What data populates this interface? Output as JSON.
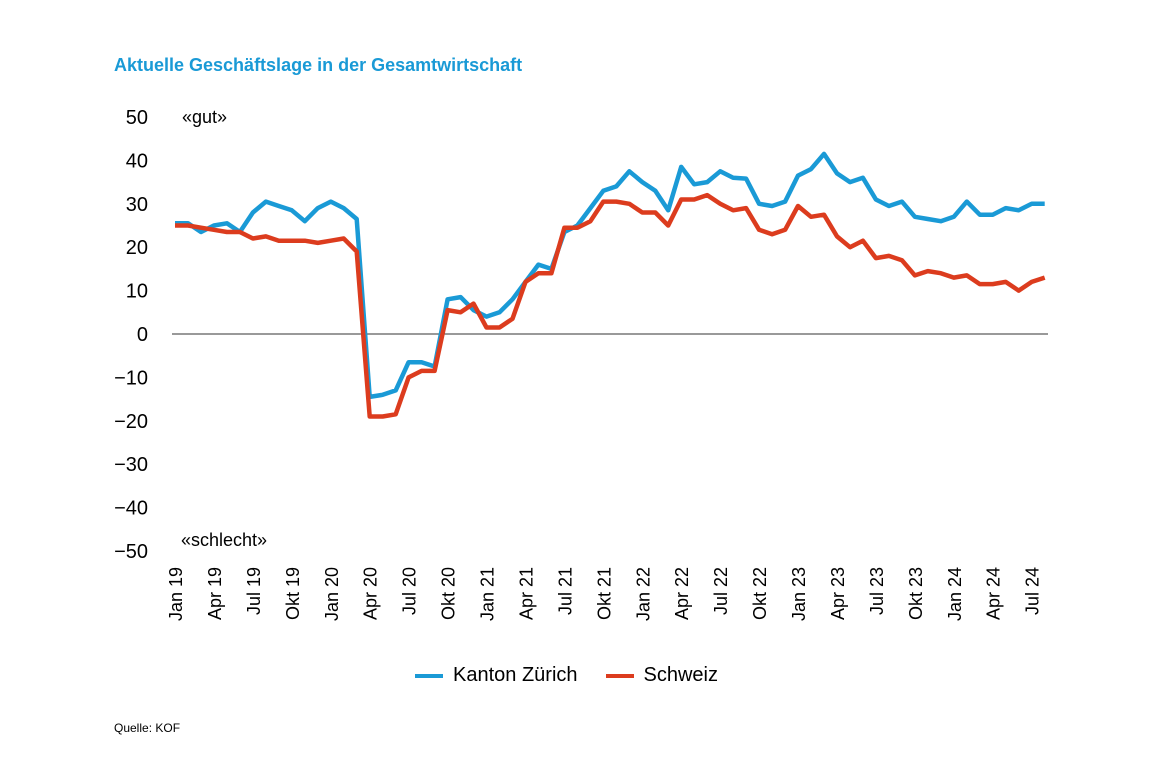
{
  "chart_data": {
    "type": "line",
    "title": "Aktuelle Geschäftslage in der Gesamtwirtschaft",
    "ylim": [
      -50,
      50
    ],
    "yticks": [
      "50",
      "40",
      "30",
      "20",
      "10",
      "0",
      "−10",
      "−20",
      "−30",
      "−40",
      "−50"
    ],
    "annotation_top": "«gut»",
    "annotation_bottom": "«schlecht»",
    "x_start": "Jan 19",
    "x_end": "Aug 24",
    "xtick_labels": [
      "Jan 19",
      "Apr 19",
      "Jul 19",
      "Okt 19",
      "Jan 20",
      "Apr 20",
      "Jul 20",
      "Okt 20",
      "Jan 21",
      "Apr 21",
      "Jul 21",
      "Okt 21",
      "Jan 22",
      "Apr 22",
      "Jul 22",
      "Okt 22",
      "Jan 23",
      "Apr 23",
      "Jul 23",
      "Okt 23",
      "Jan 24",
      "Apr 24",
      "Jul 24"
    ],
    "grid": false,
    "legend_position": "bottom",
    "series": [
      {
        "name": "Kanton Zürich",
        "color": "#1a9ad6",
        "values": [
          25.5,
          25.5,
          23.5,
          25,
          25.5,
          23.5,
          28,
          30.5,
          29.5,
          28.5,
          26,
          29,
          30.5,
          29,
          26.5,
          -14.5,
          -14,
          -13,
          -6.5,
          -6.5,
          -7.5,
          8,
          8.5,
          5.5,
          4,
          5,
          8,
          12,
          16,
          15,
          23.5,
          25,
          29,
          33,
          34,
          37.5,
          35,
          33,
          28.5,
          38.5,
          34.5,
          35,
          37.5,
          36,
          35.8,
          30,
          29.5,
          30.5,
          36.5,
          38,
          41.5,
          37,
          35,
          36,
          31,
          29.5,
          30.5,
          27,
          26.5,
          26,
          27,
          30.5,
          27.5,
          27.5,
          29,
          28.5,
          30,
          30
        ]
      },
      {
        "name": "Schweiz",
        "color": "#dc3c1e",
        "values": [
          25,
          25,
          24.5,
          24,
          23.5,
          23.5,
          22,
          22.5,
          21.5,
          21.5,
          21.5,
          21,
          21.5,
          22,
          19,
          -19,
          -19,
          -18.5,
          -10,
          -8.5,
          -8.5,
          5.5,
          5,
          7,
          1.5,
          1.5,
          3.5,
          12,
          14,
          14,
          24.5,
          24.5,
          26,
          30.5,
          30.5,
          30,
          28,
          28,
          25,
          31,
          31,
          32,
          30,
          28.5,
          29,
          24,
          23,
          24,
          29.5,
          27,
          27.5,
          22.5,
          20,
          21.5,
          17.5,
          18,
          17,
          13.5,
          14.5,
          14,
          13,
          13.5,
          11.5,
          11.5,
          12,
          10,
          12,
          13
        ]
      }
    ],
    "source": "Quelle: KOF"
  }
}
